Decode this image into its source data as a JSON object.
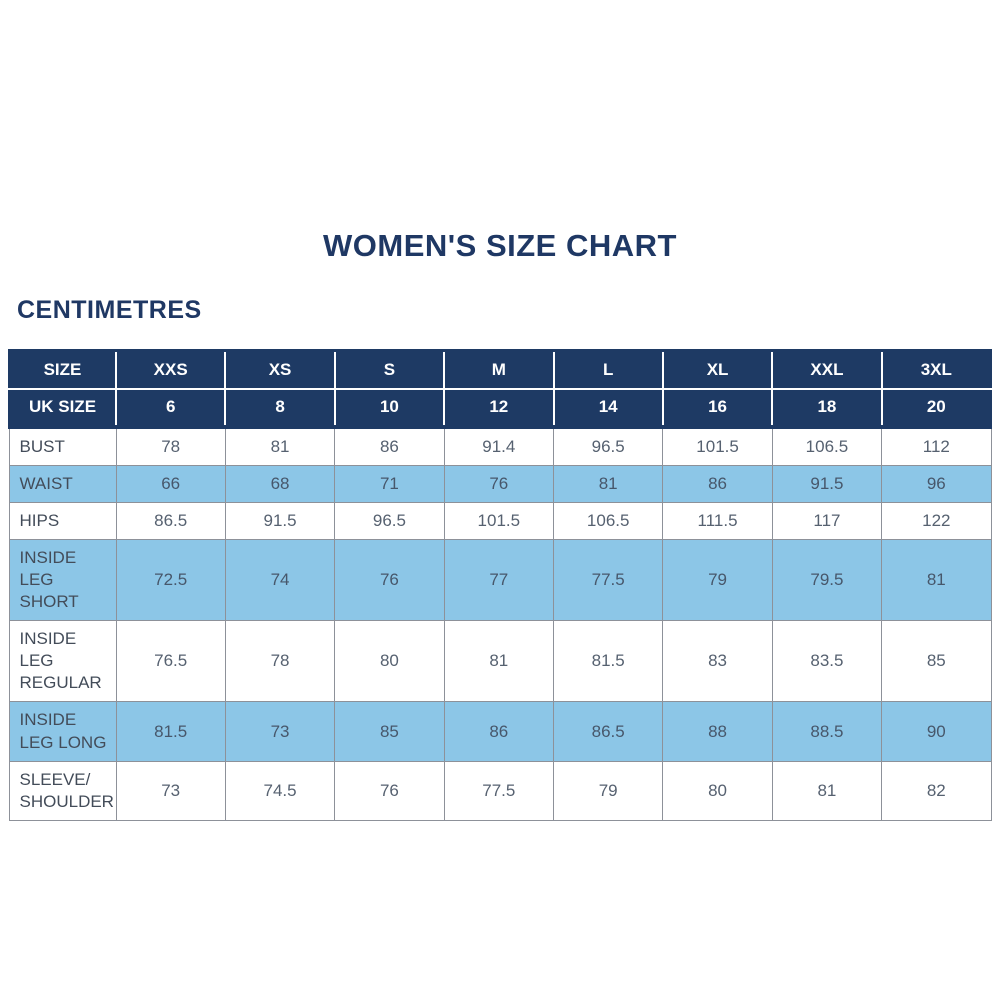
{
  "page": {
    "title": "WOMEN'S SIZE CHART",
    "units_label": "CENTIMETRES"
  },
  "colors": {
    "navy_header": "#1e3a64",
    "title_text": "#1f3864",
    "shaded_row_blue": "#8cc6e7",
    "cell_border_gray": "#8d9199",
    "data_text_gray": "#566170"
  },
  "chart_data": {
    "type": "table",
    "title": "WOMEN'S SIZE CHART",
    "units": "CENTIMETRES",
    "header_rows": [
      {
        "label": "SIZE",
        "values": [
          "XXS",
          "XS",
          "S",
          "M",
          "L",
          "XL",
          "XXL",
          "3XL"
        ]
      },
      {
        "label": "UK SIZE",
        "values": [
          "6",
          "8",
          "10",
          "12",
          "14",
          "16",
          "18",
          "20"
        ]
      }
    ],
    "rows": [
      {
        "label": "BUST",
        "shaded": false,
        "values": [
          "78",
          "81",
          "86",
          "91.4",
          "96.5",
          "101.5",
          "106.5",
          "112"
        ]
      },
      {
        "label": "WAIST",
        "shaded": true,
        "values": [
          "66",
          "68",
          "71",
          "76",
          "81",
          "86",
          "91.5",
          "96"
        ]
      },
      {
        "label": "HIPS",
        "shaded": false,
        "values": [
          "86.5",
          "91.5",
          "96.5",
          "101.5",
          "106.5",
          "111.5",
          "117",
          "122"
        ]
      },
      {
        "label": "INSIDE LEG SHORT",
        "shaded": true,
        "values": [
          "72.5",
          "74",
          "76",
          "77",
          "77.5",
          "79",
          "79.5",
          "81"
        ]
      },
      {
        "label": "INSIDE LEG REGULAR",
        "shaded": false,
        "values": [
          "76.5",
          "78",
          "80",
          "81",
          "81.5",
          "83",
          "83.5",
          "85"
        ]
      },
      {
        "label": "INSIDE LEG LONG",
        "shaded": true,
        "values": [
          "81.5",
          "73",
          "85",
          "86",
          "86.5",
          "88",
          "88.5",
          "90"
        ]
      },
      {
        "label": "SLEEVE/ SHOULDER",
        "shaded": false,
        "values": [
          "73",
          "74.5",
          "76",
          "77.5",
          "79",
          "80",
          "81",
          "82"
        ]
      }
    ]
  }
}
